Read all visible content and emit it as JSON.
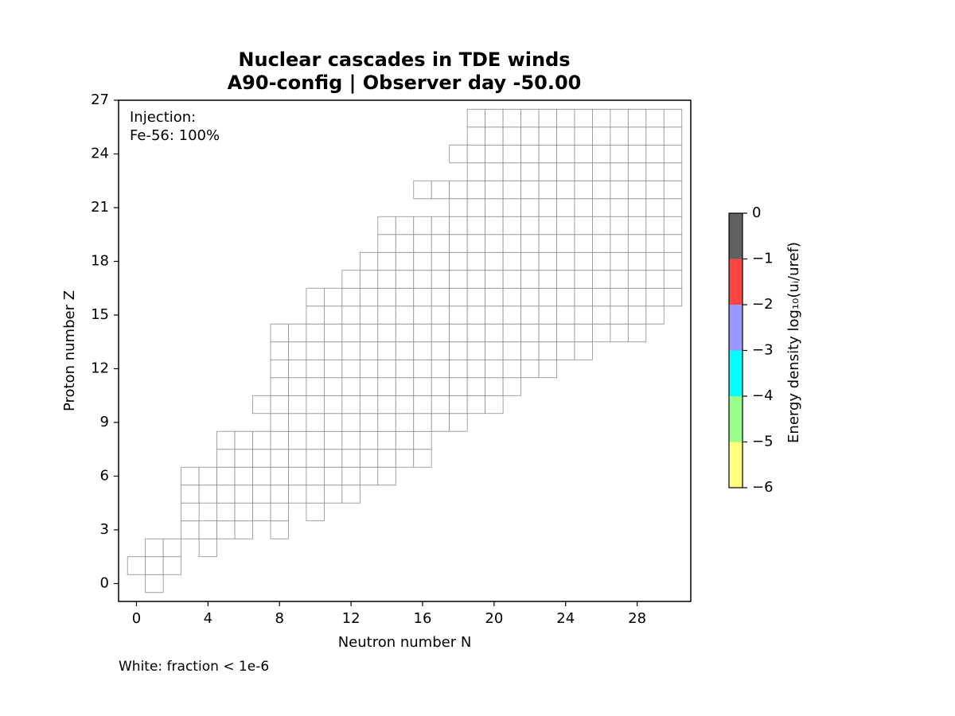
{
  "chart_data": {
    "type": "heatmap",
    "title": [
      "Nuclear cascades in TDE winds",
      "A90-config | Observer day -50.00"
    ],
    "xlabel": "Neutron number N",
    "ylabel": "Proton number Z",
    "xlim": [
      -1,
      31
    ],
    "ylim": [
      -1,
      27
    ],
    "xticks": [
      0,
      4,
      8,
      12,
      16,
      20,
      24,
      28
    ],
    "yticks": [
      0,
      3,
      6,
      9,
      12,
      15,
      18,
      21,
      24,
      27
    ],
    "annotation": [
      "Injection:",
      "Fe-56: 100%"
    ],
    "footnote": "White: fraction < 1e-6",
    "cell_color": "#ffffff",
    "cell_edge": "#8c8c8c",
    "cells": [
      {
        "z": 0,
        "n": [
          1
        ]
      },
      {
        "z": 1,
        "n": [
          0,
          1,
          2
        ]
      },
      {
        "z": 2,
        "n": [
          1,
          2,
          4
        ]
      },
      {
        "z": 3,
        "n": [
          3,
          4,
          5,
          6,
          8
        ]
      },
      {
        "z": 4,
        "n": [
          3,
          5,
          6,
          7,
          8,
          10
        ]
      },
      {
        "z": 5,
        "n": [
          3,
          4,
          5,
          6,
          7,
          8,
          9,
          10,
          11,
          12
        ]
      },
      {
        "z": 6,
        "n": [
          3,
          4,
          5,
          6,
          7,
          8,
          9,
          10,
          11,
          12,
          13,
          14
        ]
      },
      {
        "z": 7,
        "n": [
          5,
          6,
          7,
          8,
          9,
          10,
          11,
          12,
          13,
          14,
          15,
          16
        ]
      },
      {
        "z": 8,
        "n": [
          5,
          6,
          7,
          8,
          9,
          10,
          11,
          12,
          13,
          14,
          15,
          16
        ]
      },
      {
        "z": 9,
        "n": [
          8,
          9,
          10,
          11,
          12,
          13,
          14,
          15,
          16,
          17,
          18
        ]
      },
      {
        "z": 10,
        "n": [
          7,
          8,
          9,
          10,
          11,
          12,
          13,
          14,
          15,
          16,
          17,
          18,
          19,
          20
        ]
      },
      {
        "z": 11,
        "n": [
          8,
          9,
          10,
          11,
          12,
          13,
          14,
          15,
          16,
          17,
          18,
          19,
          20,
          21
        ]
      },
      {
        "z": 12,
        "n": [
          8,
          9,
          10,
          11,
          12,
          13,
          14,
          15,
          16,
          17,
          18,
          19,
          20,
          21,
          22,
          23
        ]
      },
      {
        "z": 13,
        "n": [
          8,
          9,
          10,
          11,
          12,
          13,
          14,
          15,
          16,
          17,
          18,
          19,
          20,
          21,
          22,
          23,
          24,
          25
        ]
      },
      {
        "z": 14,
        "n": [
          8,
          9,
          10,
          11,
          12,
          13,
          14,
          15,
          16,
          17,
          18,
          19,
          20,
          21,
          22,
          23,
          24,
          25,
          26,
          27,
          28
        ]
      },
      {
        "z": 15,
        "n": [
          10,
          11,
          12,
          13,
          14,
          15,
          16,
          17,
          18,
          19,
          20,
          21,
          22,
          23,
          24,
          25,
          26,
          27,
          28,
          29
        ]
      },
      {
        "z": 16,
        "n": [
          10,
          11,
          12,
          13,
          14,
          15,
          16,
          17,
          18,
          19,
          20,
          21,
          22,
          23,
          24,
          25,
          26,
          27,
          28,
          29,
          30
        ]
      },
      {
        "z": 17,
        "n": [
          12,
          13,
          14,
          15,
          16,
          17,
          18,
          19,
          20,
          21,
          22,
          23,
          24,
          25,
          26,
          27,
          28,
          29,
          30
        ]
      },
      {
        "z": 18,
        "n": [
          13,
          14,
          15,
          16,
          17,
          18,
          19,
          20,
          21,
          22,
          23,
          24,
          25,
          26,
          27,
          28,
          29,
          30
        ]
      },
      {
        "z": 19,
        "n": [
          14,
          15,
          16,
          17,
          18,
          19,
          20,
          21,
          22,
          23,
          24,
          25,
          26,
          27,
          28,
          29,
          30
        ]
      },
      {
        "z": 20,
        "n": [
          14,
          15,
          16,
          17,
          18,
          19,
          20,
          21,
          22,
          23,
          24,
          25,
          26,
          27,
          28,
          29,
          30
        ]
      },
      {
        "z": 21,
        "n": [
          18,
          19,
          20,
          21,
          22,
          23,
          24,
          25,
          26,
          27,
          28,
          29,
          30
        ]
      },
      {
        "z": 22,
        "n": [
          16,
          17,
          18,
          19,
          20,
          21,
          22,
          23,
          24,
          25,
          26,
          27,
          28,
          29,
          30
        ]
      },
      {
        "z": 23,
        "n": [
          19,
          20,
          21,
          22,
          23,
          24,
          25,
          26,
          27,
          28,
          29,
          30
        ]
      },
      {
        "z": 24,
        "n": [
          18,
          19,
          20,
          21,
          22,
          23,
          24,
          25,
          26,
          27,
          28,
          29,
          30
        ]
      },
      {
        "z": 25,
        "n": [
          19,
          20,
          21,
          22,
          23,
          24,
          25,
          26,
          27,
          28,
          29,
          30
        ]
      },
      {
        "z": 26,
        "n": [
          19,
          20,
          21,
          22,
          23,
          24,
          25,
          26,
          27,
          28,
          29,
          30
        ]
      }
    ],
    "colorbar": {
      "label": "Energy density log₁₀(uᵢ/uref)",
      "lim": [
        -6,
        0
      ],
      "bins": [
        -6,
        -5,
        -4,
        -3,
        -2,
        -1,
        0
      ],
      "colors": [
        "#ffff80",
        "#99ff88",
        "#00ffff",
        "#9999ff",
        "#ff4444",
        "#606060"
      ],
      "ticks": [
        {
          "value": 0,
          "label": "0"
        },
        {
          "value": -1,
          "label": "−1"
        },
        {
          "value": -2,
          "label": "−2"
        },
        {
          "value": -3,
          "label": "−3"
        },
        {
          "value": -4,
          "label": "−4"
        },
        {
          "value": -5,
          "label": "−5"
        },
        {
          "value": -6,
          "label": "−6"
        }
      ]
    }
  }
}
